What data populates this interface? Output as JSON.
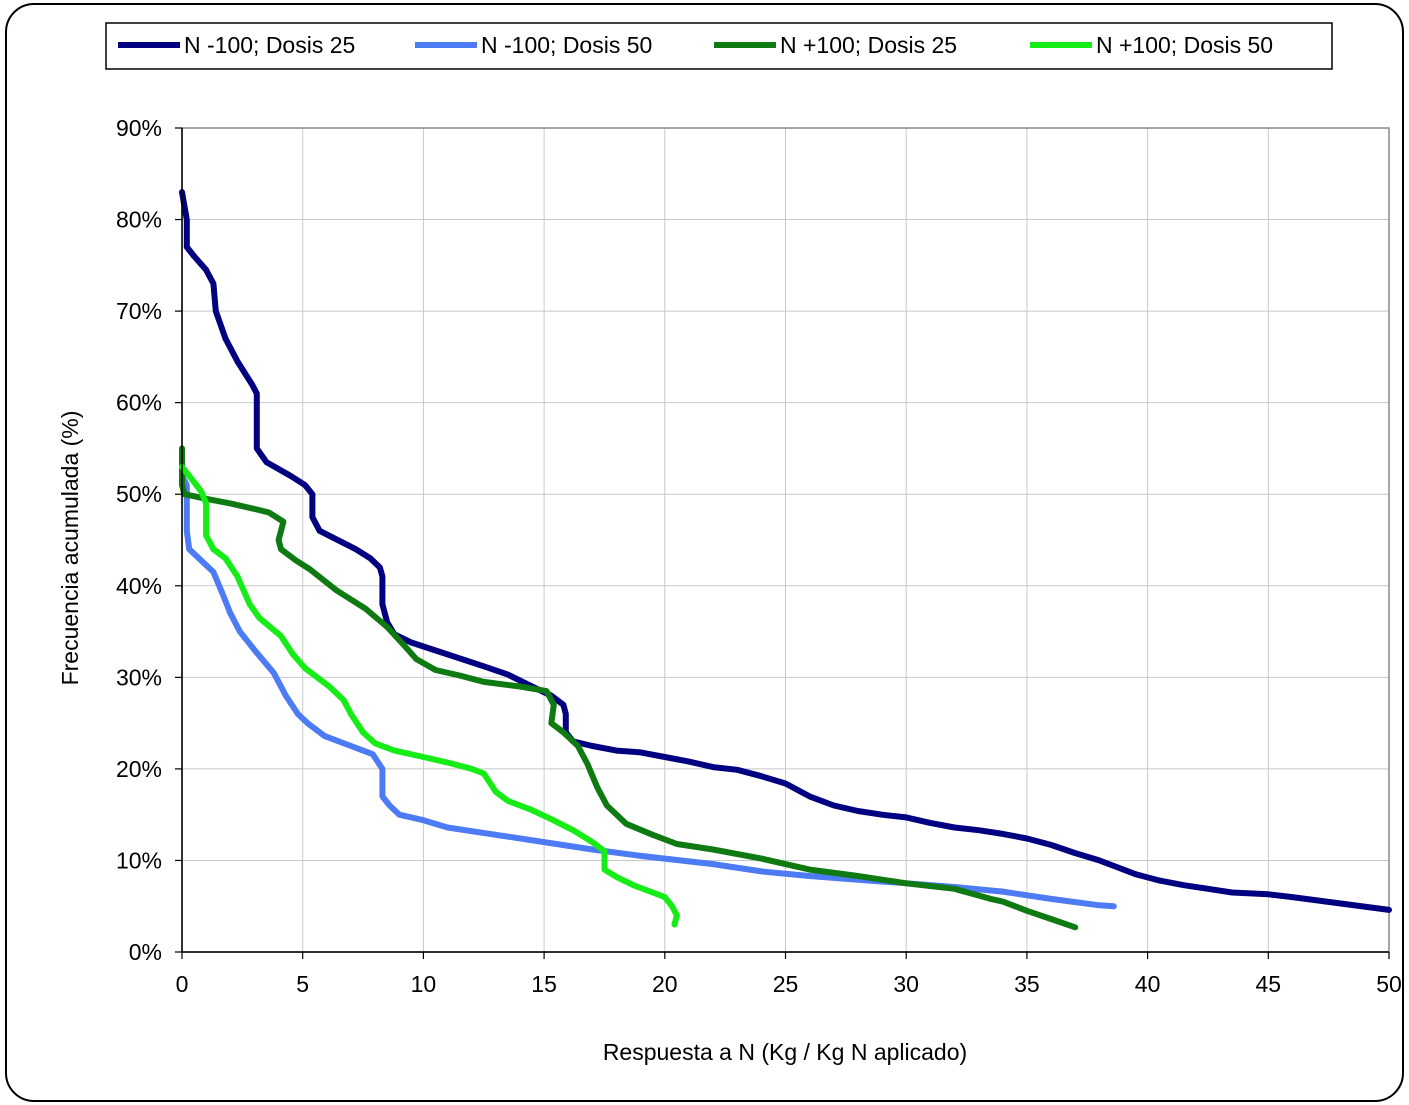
{
  "chart_data": {
    "type": "line",
    "title": "",
    "xlabel": "Respuesta a N (Kg / Kg N aplicado)",
    "ylabel": "Frecuencia acumulada (%)",
    "xlim": [
      0,
      50
    ],
    "ylim": [
      0,
      90
    ],
    "x_ticks": [
      "0",
      "5",
      "10",
      "15",
      "20",
      "25",
      "30",
      "35",
      "40",
      "45",
      "50"
    ],
    "y_ticks": [
      "0%",
      "10%",
      "20%",
      "30%",
      "40%",
      "50%",
      "60%",
      "70%",
      "80%",
      "90%"
    ],
    "grid": true,
    "legend_position": "top",
    "series": [
      {
        "name": "N -100; Dosis 25",
        "color": "#000080",
        "points": [
          [
            0,
            83
          ],
          [
            0.2,
            80
          ],
          [
            0.2,
            77
          ],
          [
            0.5,
            76
          ],
          [
            1,
            74.5
          ],
          [
            1.3,
            73
          ],
          [
            1.4,
            70
          ],
          [
            1.8,
            67
          ],
          [
            2.3,
            64.5
          ],
          [
            2.9,
            62
          ],
          [
            3.1,
            61
          ],
          [
            3.1,
            57
          ],
          [
            3.1,
            55
          ],
          [
            3.5,
            53.5
          ],
          [
            4.5,
            52
          ],
          [
            5.1,
            51
          ],
          [
            5.4,
            50
          ],
          [
            5.4,
            47.5
          ],
          [
            5.7,
            46
          ],
          [
            6.3,
            45.2
          ],
          [
            7.2,
            44
          ],
          [
            7.8,
            43
          ],
          [
            8.2,
            42
          ],
          [
            8.3,
            41
          ],
          [
            8.3,
            38
          ],
          [
            8.5,
            36
          ],
          [
            8.8,
            34.7
          ],
          [
            9.5,
            33.8
          ],
          [
            11,
            32.5
          ],
          [
            12.5,
            31.2
          ],
          [
            13.5,
            30.3
          ],
          [
            14.5,
            29
          ],
          [
            15.3,
            28
          ],
          [
            15.8,
            27
          ],
          [
            15.9,
            26
          ],
          [
            15.9,
            24
          ],
          [
            16.2,
            23
          ],
          [
            17,
            22.5
          ],
          [
            18,
            22
          ],
          [
            19,
            21.8
          ],
          [
            20,
            21.3
          ],
          [
            21,
            20.8
          ],
          [
            22,
            20.2
          ],
          [
            23,
            19.9
          ],
          [
            24,
            19.2
          ],
          [
            25,
            18.4
          ],
          [
            26,
            17
          ],
          [
            27,
            16
          ],
          [
            28,
            15.4
          ],
          [
            29,
            15
          ],
          [
            30,
            14.7
          ],
          [
            31,
            14.1
          ],
          [
            32,
            13.6
          ],
          [
            33,
            13.3
          ],
          [
            34,
            12.9
          ],
          [
            35,
            12.4
          ],
          [
            36,
            11.7
          ],
          [
            37,
            10.8
          ],
          [
            38,
            10
          ],
          [
            38.5,
            9.5
          ],
          [
            39.5,
            8.5
          ],
          [
            40.5,
            7.8
          ],
          [
            41.5,
            7.3
          ],
          [
            42.5,
            6.9
          ],
          [
            43.5,
            6.5
          ],
          [
            45,
            6.3
          ],
          [
            46,
            6
          ],
          [
            48,
            5.3
          ],
          [
            50,
            4.6
          ]
        ]
      },
      {
        "name": "N -100; Dosis 50",
        "color": "#4D7BF3",
        "points": [
          [
            0,
            52
          ],
          [
            0.2,
            51
          ],
          [
            0.2,
            48
          ],
          [
            0.2,
            46
          ],
          [
            0.3,
            44
          ],
          [
            0.7,
            43
          ],
          [
            1.3,
            41.5
          ],
          [
            1.7,
            39
          ],
          [
            2,
            37
          ],
          [
            2.4,
            35
          ],
          [
            3,
            33
          ],
          [
            3.8,
            30.5
          ],
          [
            4.3,
            28
          ],
          [
            4.8,
            26
          ],
          [
            5.2,
            25
          ],
          [
            5.9,
            23.6
          ],
          [
            7,
            22.5
          ],
          [
            7.9,
            21.6
          ],
          [
            8.3,
            20
          ],
          [
            8.3,
            17
          ],
          [
            8.6,
            16
          ],
          [
            9,
            15
          ],
          [
            10,
            14.4
          ],
          [
            11,
            13.6
          ],
          [
            13,
            12.8
          ],
          [
            15,
            12
          ],
          [
            17,
            11.2
          ],
          [
            19,
            10.5
          ],
          [
            20,
            10.2
          ],
          [
            22,
            9.6
          ],
          [
            24,
            8.8
          ],
          [
            26,
            8.3
          ],
          [
            28,
            7.9
          ],
          [
            30,
            7.5
          ],
          [
            32,
            7.1
          ],
          [
            34,
            6.6
          ],
          [
            36,
            5.8
          ],
          [
            38,
            5.1
          ],
          [
            38.6,
            5
          ]
        ]
      },
      {
        "name": "N +100; Dosis 25",
        "color": "#0F7A12",
        "points": [
          [
            0,
            55
          ],
          [
            0,
            51
          ],
          [
            0.1,
            50
          ],
          [
            1,
            49.5
          ],
          [
            2,
            49
          ],
          [
            3,
            48.4
          ],
          [
            3.6,
            48
          ],
          [
            4.2,
            47
          ],
          [
            4,
            45
          ],
          [
            4.1,
            44
          ],
          [
            4.7,
            42.8
          ],
          [
            5.3,
            41.8
          ],
          [
            6.4,
            39.5
          ],
          [
            7.6,
            37.5
          ],
          [
            8.5,
            35.5
          ],
          [
            9.2,
            33.5
          ],
          [
            9.7,
            32
          ],
          [
            10.5,
            30.8
          ],
          [
            11.5,
            30.2
          ],
          [
            12.5,
            29.5
          ],
          [
            14,
            29
          ],
          [
            15.1,
            28.5
          ],
          [
            15.4,
            27
          ],
          [
            15.3,
            25
          ],
          [
            15.8,
            24
          ],
          [
            16.4,
            22.5
          ],
          [
            16.8,
            20.5
          ],
          [
            17.2,
            18
          ],
          [
            17.6,
            16
          ],
          [
            18.4,
            14
          ],
          [
            19.5,
            12.8
          ],
          [
            20.5,
            11.8
          ],
          [
            22,
            11.2
          ],
          [
            24,
            10.2
          ],
          [
            26,
            9
          ],
          [
            28,
            8.3
          ],
          [
            30,
            7.5
          ],
          [
            32,
            6.9
          ],
          [
            33.5,
            5.8
          ],
          [
            34,
            5.5
          ],
          [
            35,
            4.5
          ],
          [
            36,
            3.6
          ],
          [
            37,
            2.7
          ]
        ]
      },
      {
        "name": "N +100; Dosis 50",
        "color": "#16EC16",
        "points": [
          [
            0,
            53
          ],
          [
            0.3,
            52
          ],
          [
            0.8,
            50.3
          ],
          [
            1,
            49
          ],
          [
            1,
            45.5
          ],
          [
            1.3,
            44
          ],
          [
            1.8,
            43
          ],
          [
            2.3,
            41
          ],
          [
            2.8,
            38
          ],
          [
            3.2,
            36.5
          ],
          [
            4.1,
            34.5
          ],
          [
            4.6,
            32.5
          ],
          [
            5.1,
            31
          ],
          [
            6.1,
            29
          ],
          [
            6.7,
            27.5
          ],
          [
            7,
            26
          ],
          [
            7.5,
            24
          ],
          [
            8,
            22.8
          ],
          [
            8.8,
            22
          ],
          [
            10,
            21.3
          ],
          [
            11,
            20.7
          ],
          [
            12,
            20
          ],
          [
            12.5,
            19.5
          ],
          [
            13,
            17.5
          ],
          [
            13.5,
            16.5
          ],
          [
            14.5,
            15.5
          ],
          [
            15.3,
            14.5
          ],
          [
            16.2,
            13.3
          ],
          [
            17,
            12
          ],
          [
            17.5,
            11
          ],
          [
            17.5,
            9
          ],
          [
            18,
            8.2
          ],
          [
            18.7,
            7.3
          ],
          [
            19.5,
            6.5
          ],
          [
            20,
            6
          ],
          [
            20.3,
            5
          ],
          [
            20.5,
            4
          ],
          [
            20.4,
            3
          ]
        ]
      }
    ]
  }
}
